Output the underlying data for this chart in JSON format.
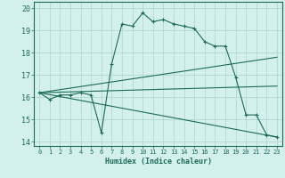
{
  "title": "",
  "xlabel": "Humidex (Indice chaleur)",
  "ylabel": "",
  "background_color": "#d4f0ec",
  "grid_color": "#b0d8d4",
  "line_color": "#1a6b5a",
  "xlim": [
    -0.5,
    23.5
  ],
  "ylim": [
    13.8,
    20.3
  ],
  "xticks": [
    0,
    1,
    2,
    3,
    4,
    5,
    6,
    7,
    8,
    9,
    10,
    11,
    12,
    13,
    14,
    15,
    16,
    17,
    18,
    19,
    20,
    21,
    22,
    23
  ],
  "yticks": [
    14,
    15,
    16,
    17,
    18,
    19,
    20
  ],
  "main_series": {
    "x": [
      0,
      1,
      2,
      3,
      4,
      5,
      6,
      7,
      8,
      9,
      10,
      11,
      12,
      13,
      14,
      15,
      16,
      17,
      18,
      19,
      20,
      21,
      22,
      23
    ],
    "y": [
      16.2,
      15.9,
      16.1,
      16.1,
      16.2,
      16.1,
      14.4,
      17.5,
      19.3,
      19.2,
      19.8,
      19.4,
      19.5,
      19.3,
      19.2,
      19.1,
      18.5,
      18.3,
      18.3,
      16.9,
      15.2,
      15.2,
      14.3,
      14.2
    ]
  },
  "line1": {
    "x": [
      0,
      23
    ],
    "y": [
      16.2,
      17.8
    ]
  },
  "line2": {
    "x": [
      0,
      23
    ],
    "y": [
      16.2,
      16.5
    ]
  },
  "line3": {
    "x": [
      0,
      23
    ],
    "y": [
      16.2,
      14.2
    ]
  },
  "xlabel_fontsize": 6,
  "xtick_fontsize": 5,
  "ytick_fontsize": 6
}
